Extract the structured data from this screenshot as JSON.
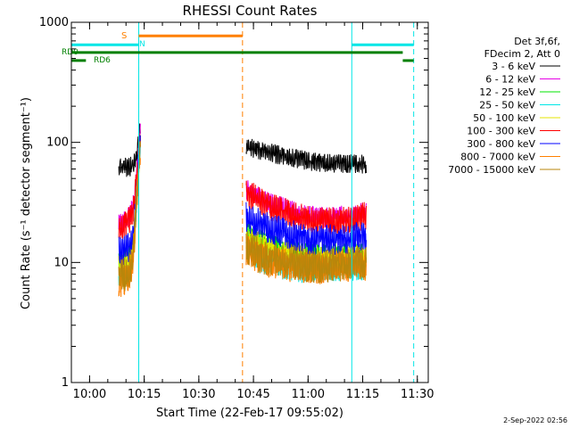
{
  "chart_data": {
    "type": "line",
    "title": "RHESSI Count Rates",
    "xlabel": "Start Time (22-Feb-17 09:55:02)",
    "ylabel": "Count Rate (s⁻¹ detector segment⁻¹)",
    "ylog": true,
    "ylim": [
      1,
      1000
    ],
    "xlim": [
      "09:55",
      "11:33"
    ],
    "x_ticks": [
      "10:00",
      "10:15",
      "10:30",
      "10:45",
      "11:00",
      "11:15",
      "11:30"
    ],
    "y_ticks": [
      "1",
      "10",
      "100",
      "1000"
    ],
    "grid": false,
    "legend_position": "right",
    "legend_header": [
      "Det 3f,6f,",
      "FDecim 2, Att 0"
    ],
    "series": [
      {
        "name": "3 - 6 keV",
        "color": "#000000",
        "segments": [
          {
            "t": [
              "10:08",
              "10:10",
              "10:11",
              "10:12",
              "10:13",
              "10:14"
            ],
            "v": [
              67,
              68,
              68,
              72,
              90,
              150
            ]
          },
          {
            "t": [
              "10:43",
              "10:48",
              "10:55",
              "11:00",
              "11:05",
              "11:10",
              "11:16"
            ],
            "v": [
              100,
              92,
              82,
              77,
              73,
              73,
              72
            ]
          }
        ]
      },
      {
        "name": "6 - 12 keV",
        "color": "#e600e6",
        "segments": [
          {
            "t": [
              "10:08",
              "10:10",
              "10:11",
              "10:12",
              "10:13",
              "10:14"
            ],
            "v": [
              23,
              25,
              27,
              33,
              65,
              140
            ]
          },
          {
            "t": [
              "10:43",
              "10:48",
              "10:55",
              "11:00",
              "11:05",
              "11:10",
              "11:16"
            ],
            "v": [
              45,
              36,
              30,
              27,
              26,
              27,
              29
            ]
          }
        ]
      },
      {
        "name": "12 - 25 keV",
        "color": "#00e600",
        "segments": [
          {
            "t": [
              "10:08",
              "10:10",
              "10:11",
              "10:12",
              "10:13",
              "10:14"
            ],
            "v": [
              11,
              12,
              13,
              16,
              45,
              125
            ]
          },
          {
            "t": [
              "10:43",
              "10:48",
              "10:55",
              "11:00",
              "11:05",
              "11:10",
              "11:16"
            ],
            "v": [
              20,
              16,
              14,
              13,
              13,
              13,
              13
            ]
          }
        ]
      },
      {
        "name": "25 - 50 keV",
        "color": "#00e6e6",
        "segments": [
          {
            "t": [
              "10:08",
              "10:10",
              "10:11",
              "10:12",
              "10:13",
              "10:14"
            ],
            "v": [
              9,
              9,
              10,
              14,
              40,
              120
            ]
          },
          {
            "t": [
              "10:43",
              "10:48",
              "10:55",
              "11:00",
              "11:05",
              "11:10",
              "11:16"
            ],
            "v": [
              14,
              11,
              10,
              9.5,
              10,
              10,
              10
            ]
          }
        ]
      },
      {
        "name": "50 - 100 keV",
        "color": "#e6e600",
        "segments": [
          {
            "t": [
              "10:08",
              "10:10",
              "10:11",
              "10:12",
              "10:13",
              "10:14"
            ],
            "v": [
              10,
              11,
              12,
              15,
              45,
              125
            ]
          },
          {
            "t": [
              "10:43",
              "10:48",
              "10:55",
              "11:00",
              "11:05",
              "11:10",
              "11:16"
            ],
            "v": [
              18,
              15,
              13,
              12,
              12,
              12,
              12
            ]
          }
        ]
      },
      {
        "name": "100 - 300 keV",
        "color": "#ff0000",
        "segments": [
          {
            "t": [
              "10:08",
              "10:10",
              "10:11",
              "10:12",
              "10:13",
              "10:14"
            ],
            "v": [
              22,
              24,
              26,
              31,
              62,
              138
            ]
          },
          {
            "t": [
              "10:43",
              "10:48",
              "10:55",
              "11:00",
              "11:05",
              "11:10",
              "11:16"
            ],
            "v": [
              44,
              35,
              29,
              26,
              25,
              26,
              28
            ]
          }
        ]
      },
      {
        "name": "300 - 800 keV",
        "color": "#0000ff",
        "segments": [
          {
            "t": [
              "10:08",
              "10:10",
              "10:11",
              "10:12",
              "10:13",
              "10:14"
            ],
            "v": [
              14,
              15,
              16,
              19,
              52,
              130
            ]
          },
          {
            "t": [
              "10:43",
              "10:48",
              "10:55",
              "11:00",
              "11:05",
              "11:10",
              "11:16"
            ],
            "v": [
              28,
              23,
              20,
              18,
              18,
              18,
              19
            ]
          }
        ]
      },
      {
        "name": "800 - 7000 keV",
        "color": "#ff8000",
        "segments": [
          {
            "t": [
              "10:08",
              "10:10",
              "10:11",
              "10:12",
              "10:13",
              "10:14"
            ],
            "v": [
              8,
              8.5,
              9,
              13,
              40,
              118
            ]
          },
          {
            "t": [
              "10:43",
              "10:48",
              "10:55",
              "11:00",
              "11:05",
              "11:10",
              "11:16"
            ],
            "v": [
              15,
              12,
              11,
              10.5,
              10.5,
              11,
              11
            ]
          }
        ]
      },
      {
        "name": "7000 - 15000 keV",
        "color": "#b8860b",
        "segments": [
          {
            "t": [
              "10:08",
              "10:10",
              "10:11",
              "10:12",
              "10:13",
              "10:14"
            ],
            "v": [
              9,
              9.5,
              10,
              14,
              42,
              120
            ]
          },
          {
            "t": [
              "10:43",
              "10:48",
              "10:55",
              "11:00",
              "11:05",
              "11:10",
              "11:16"
            ],
            "v": [
              16,
              13,
              12,
              11,
              11,
              11.5,
              12
            ]
          }
        ]
      }
    ],
    "vertical_lines": [
      {
        "time": "10:13:30",
        "color": "#ff8000",
        "style": "dashed"
      },
      {
        "time": "10:13:30",
        "color": "#00e6e6",
        "style": "solid"
      },
      {
        "time": "10:42",
        "color": "#ff8000",
        "style": "dashed"
      },
      {
        "time": "11:12",
        "color": "#00e6e6",
        "style": "solid"
      },
      {
        "time": "11:29",
        "color": "#00e6e6",
        "style": "dashed"
      }
    ],
    "flag_bars": [
      {
        "label": "",
        "color": "#00e6e6",
        "level": 650,
        "spans": [
          [
            "09:55",
            "10:13:30"
          ],
          [
            "11:12",
            "11:29"
          ]
        ]
      },
      {
        "label": "S",
        "color": "#ff8000",
        "level": 770,
        "spans": [
          [
            "10:13:30",
            "10:42"
          ]
        ]
      },
      {
        "label": "N",
        "color": "#00e6e6",
        "level": 650,
        "spans": []
      },
      {
        "label": "RD0",
        "color": "#008000",
        "level": 560,
        "spans": [
          [
            "09:55",
            "11:26"
          ]
        ]
      },
      {
        "label": "RD6",
        "color": "#008000",
        "level": 480,
        "spans": [
          [
            "09:55",
            "09:59"
          ],
          [
            "11:26",
            "11:29"
          ]
        ]
      }
    ]
  },
  "timestamp": "2-Sep-2022 02:56"
}
